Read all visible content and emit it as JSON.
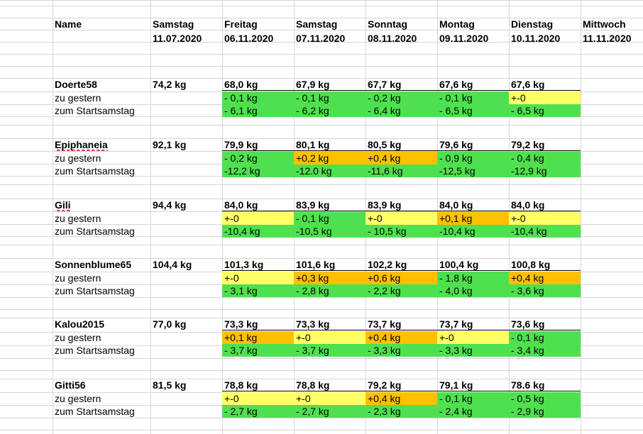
{
  "header": {
    "name_label": "Name",
    "columns": [
      {
        "day": "Samstag",
        "date": "11.07.2020"
      },
      {
        "day": "Freitag",
        "date": "06.11.2020"
      },
      {
        "day": "Samstag",
        "date": "07.11.2020"
      },
      {
        "day": "Sonntag",
        "date": "08.11.2020"
      },
      {
        "day": "Montag",
        "date": "09.11.2020"
      },
      {
        "day": "Dienstag",
        "date": "10.11.2020"
      },
      {
        "day": "Mittwoch",
        "date": "11.11.2020"
      }
    ]
  },
  "row_labels": {
    "daily": "zu gestern",
    "total": "zum Startsamstag"
  },
  "colors": {
    "loss": "#4fe04f",
    "neutral": "#ffff66",
    "gain": "#ffc000",
    "grid": "#d6d6d6"
  },
  "people": [
    {
      "name": "Doerte58",
      "start": "74,2 kg",
      "weights": [
        "68,0 kg",
        "67,9 kg",
        "67,7 kg",
        "67,6 kg",
        "67,6 kg"
      ],
      "daily": [
        {
          "text": "- 0,1 kg",
          "status": "loss"
        },
        {
          "text": "- 0,1 kg",
          "status": "loss"
        },
        {
          "text": "- 0,2 kg",
          "status": "loss"
        },
        {
          "text": "- 0,1 kg",
          "status": "loss"
        },
        {
          "text": "+-0",
          "status": "neutral"
        }
      ],
      "total": [
        {
          "text": "- 6,1 kg",
          "status": "loss"
        },
        {
          "text": "- 6,2 kg",
          "status": "loss"
        },
        {
          "text": "- 6,4 kg",
          "status": "loss"
        },
        {
          "text": "- 6,5 kg",
          "status": "loss"
        },
        {
          "text": "- 6,5 kg",
          "status": "loss"
        }
      ]
    },
    {
      "name": "Epiphaneia",
      "start": "92,1 kg",
      "weights": [
        "79,9 kg",
        "80,1 kg",
        "80,5 kg",
        "79,6 kg",
        "79,2 kg"
      ],
      "daily": [
        {
          "text": "- 0,2 kg",
          "status": "loss"
        },
        {
          "text": "+0,2 kg",
          "status": "gain"
        },
        {
          "text": "+0,4 kg",
          "status": "gain"
        },
        {
          "text": "- 0,9 kg",
          "status": "loss"
        },
        {
          "text": "- 0,4 kg",
          "status": "loss"
        }
      ],
      "total": [
        {
          "text": "-12,2 kg",
          "status": "loss"
        },
        {
          "text": "-12.0 kg",
          "status": "loss"
        },
        {
          "text": "-11,6 kg",
          "status": "loss"
        },
        {
          "text": "-12,5 kg",
          "status": "loss"
        },
        {
          "text": "-12,9 kg",
          "status": "loss"
        }
      ]
    },
    {
      "name": "Gili",
      "start": "94,4 kg",
      "weights": [
        "84,0 kg",
        "83,9 kg",
        "83,9 kg",
        "84,0 kg",
        "84,0 kg"
      ],
      "daily": [
        {
          "text": "+-0",
          "status": "neutral"
        },
        {
          "text": "-  0,1 kg",
          "status": "loss"
        },
        {
          "text": "+-0",
          "status": "neutral"
        },
        {
          "text": "+0,1 kg",
          "status": "gain"
        },
        {
          "text": "+-0",
          "status": "neutral"
        }
      ],
      "total": [
        {
          "text": "-10,4 kg",
          "status": "loss"
        },
        {
          "text": "-10,5 kg",
          "status": "loss"
        },
        {
          "text": "- 10,5 kg",
          "status": "loss"
        },
        {
          "text": "-10,4 kg",
          "status": "loss"
        },
        {
          "text": "-10,4 kg",
          "status": "loss"
        }
      ]
    },
    {
      "name": "Sonnenblume65",
      "start": "104,4 kg",
      "weights": [
        "101,3 kg",
        "101,6 kg",
        "102,2 kg",
        "100,4 kg",
        "100,8 kg"
      ],
      "daily": [
        {
          "text": "+-0",
          "status": "neutral"
        },
        {
          "text": "+0,3 kg",
          "status": "gain"
        },
        {
          "text": "+0,6 kg",
          "status": "gain"
        },
        {
          "text": "- 1,8 kg",
          "status": "loss"
        },
        {
          "text": "+0,4 kg",
          "status": "gain"
        }
      ],
      "total": [
        {
          "text": "- 3,1 kg",
          "status": "loss"
        },
        {
          "text": "- 2,8 kg",
          "status": "loss"
        },
        {
          "text": "- 2,2 kg",
          "status": "loss"
        },
        {
          "text": "- 4,0 kg",
          "status": "loss"
        },
        {
          "text": "- 3,6 kg",
          "status": "loss"
        }
      ]
    },
    {
      "name": "Kalou2015",
      "start": "77,0 kg",
      "weights": [
        "73,3 kg",
        "73,3 kg",
        "73,7 kg",
        "73,7 kg",
        "73,6 kg"
      ],
      "daily": [
        {
          "text": "+0,1 kg",
          "status": "gain"
        },
        {
          "text": "+-0",
          "status": "neutral"
        },
        {
          "text": "+0,4 kg",
          "status": "gain"
        },
        {
          "text": "+-0",
          "status": "neutral"
        },
        {
          "text": "- 0,1 kg",
          "status": "loss"
        }
      ],
      "total": [
        {
          "text": "- 3,7 kg",
          "status": "loss"
        },
        {
          "text": "- 3,7 kg",
          "status": "loss"
        },
        {
          "text": "- 3,3 kg",
          "status": "loss"
        },
        {
          "text": "- 3,3 kg",
          "status": "loss"
        },
        {
          "text": "- 3,4 kg",
          "status": "loss"
        }
      ]
    },
    {
      "name": "Gitti56",
      "start": "81,5 kg",
      "weights": [
        "78,8 kg",
        "78,8 kg",
        "79,2 kg",
        "79,1 kg",
        "78.6 kg"
      ],
      "daily": [
        {
          "text": "+-0",
          "status": "neutral"
        },
        {
          "text": "+-0",
          "status": "neutral"
        },
        {
          "text": "+0,4 kg",
          "status": "gain"
        },
        {
          "text": "- 0,1 kg",
          "status": "loss"
        },
        {
          "text": "- 0,5 kg",
          "status": "loss"
        }
      ],
      "total": [
        {
          "text": "- 2,7 kg",
          "status": "loss"
        },
        {
          "text": "- 2,7 kg",
          "status": "loss"
        },
        {
          "text": "- 2,3 kg",
          "status": "loss"
        },
        {
          "text": "- 2,4 kg",
          "status": "loss"
        },
        {
          "text": "- 2,9 kg",
          "status": "loss"
        }
      ]
    }
  ]
}
